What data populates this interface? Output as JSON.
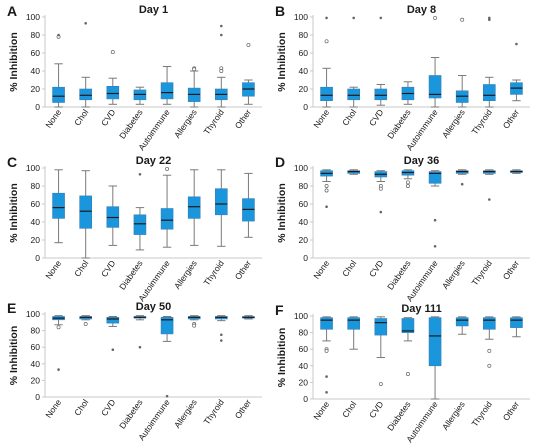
{
  "colors": {
    "box_fill": "#1a96dc",
    "box_stroke": "#3a7db5",
    "whisker": "#7a7a7a",
    "median": "#1a1a1a",
    "outlier": "#666666",
    "axis": "#c8c8c8",
    "text": "#1a1a1a"
  },
  "chart_data": [
    {
      "type": "box",
      "panel_letter": "A",
      "title": "Day 1",
      "ylabel": "% Inhibition",
      "ylim": [
        0,
        100
      ],
      "yticks": [
        0,
        20,
        40,
        60,
        80,
        100
      ],
      "categories": [
        "None",
        "Chol",
        "CVD",
        "Diabetes",
        "Autoimmune",
        "Allergies",
        "Thyroid",
        "Other"
      ],
      "boxes": [
        {
          "min": 0,
          "q1": 5,
          "median": 12,
          "q3": 22,
          "max": 48,
          "outliers": [
            78
          ],
          "extremes": [
            80
          ]
        },
        {
          "min": 0,
          "q1": 8,
          "median": 13,
          "q3": 20,
          "max": 33,
          "outliers": [],
          "extremes": [
            93
          ]
        },
        {
          "min": 3,
          "q1": 9,
          "median": 15,
          "q3": 23,
          "max": 32,
          "outliers": [
            61
          ],
          "extremes": []
        },
        {
          "min": 3,
          "q1": 8,
          "median": 14,
          "q3": 19,
          "max": 22,
          "outliers": [],
          "extremes": []
        },
        {
          "min": 3,
          "q1": 9,
          "median": 16,
          "q3": 27,
          "max": 45,
          "outliers": [],
          "extremes": []
        },
        {
          "min": 0,
          "q1": 6,
          "median": 14,
          "q3": 21,
          "max": 40,
          "outliers": [
            43,
            42
          ],
          "extremes": []
        },
        {
          "min": 0,
          "q1": 8,
          "median": 14,
          "q3": 20,
          "max": 33,
          "outliers": [
            43,
            40
          ],
          "extremes": [
            90,
            80
          ]
        },
        {
          "min": 3,
          "q1": 12,
          "median": 20,
          "q3": 27,
          "max": 30,
          "outliers": [
            69
          ],
          "extremes": []
        }
      ]
    },
    {
      "type": "box",
      "panel_letter": "B",
      "title": "Day 8",
      "ylabel": "% Inhibition",
      "ylim": [
        0,
        100
      ],
      "yticks": [
        0,
        20,
        40,
        60,
        80,
        100
      ],
      "categories": [
        "None",
        "Chol",
        "CVD",
        "Diabetes",
        "Autoimmune",
        "Allergies",
        "Thyroid",
        "Other"
      ],
      "boxes": [
        {
          "min": 0,
          "q1": 7,
          "median": 13,
          "q3": 22,
          "max": 43,
          "outliers": [
            73
          ],
          "extremes": [
            99
          ]
        },
        {
          "min": 0,
          "q1": 8,
          "median": 13,
          "q3": 20,
          "max": 22,
          "outliers": [],
          "extremes": [
            99
          ]
        },
        {
          "min": 2,
          "q1": 8,
          "median": 13,
          "q3": 20,
          "max": 25,
          "outliers": [],
          "extremes": [
            99
          ]
        },
        {
          "min": 3,
          "q1": 8,
          "median": 15,
          "q3": 22,
          "max": 28,
          "outliers": [],
          "extremes": []
        },
        {
          "min": 0,
          "q1": 10,
          "median": 14,
          "q3": 35,
          "max": 55,
          "outliers": [
            99
          ],
          "extremes": []
        },
        {
          "min": 0,
          "q1": 5,
          "median": 12,
          "q3": 18,
          "max": 35,
          "outliers": [
            97
          ],
          "extremes": []
        },
        {
          "min": 0,
          "q1": 7,
          "median": 13,
          "q3": 25,
          "max": 33,
          "outliers": [],
          "extremes": [
            99,
            97
          ]
        },
        {
          "min": 7,
          "q1": 14,
          "median": 21,
          "q3": 27,
          "max": 30,
          "outliers": [],
          "extremes": [
            70
          ]
        }
      ]
    },
    {
      "type": "box",
      "panel_letter": "C",
      "title": "Day 22",
      "ylabel": "% Inhibition",
      "ylim": [
        0,
        100
      ],
      "yticks": [
        0,
        20,
        40,
        60,
        80,
        100
      ],
      "categories": [
        "None",
        "Chol",
        "CVD",
        "Diabetes",
        "Autoimmune",
        "Allergies",
        "Thyroid",
        "Other"
      ],
      "boxes": [
        {
          "min": 17,
          "q1": 44,
          "median": 56,
          "q3": 72,
          "max": 98,
          "outliers": [],
          "extremes": []
        },
        {
          "min": 0,
          "q1": 33,
          "median": 52,
          "q3": 69,
          "max": 97,
          "outliers": [],
          "extremes": []
        },
        {
          "min": 14,
          "q1": 34,
          "median": 45,
          "q3": 57,
          "max": 80,
          "outliers": [],
          "extremes": []
        },
        {
          "min": 9,
          "q1": 26,
          "median": 38,
          "q3": 48,
          "max": 56,
          "outliers": [],
          "extremes": [
            93
          ]
        },
        {
          "min": 12,
          "q1": 32,
          "median": 42,
          "q3": 55,
          "max": 92,
          "outliers": [
            99
          ],
          "extremes": []
        },
        {
          "min": 14,
          "q1": 44,
          "median": 57,
          "q3": 68,
          "max": 98,
          "outliers": [],
          "extremes": []
        },
        {
          "min": 13,
          "q1": 48,
          "median": 60,
          "q3": 77,
          "max": 98,
          "outliers": [],
          "extremes": []
        },
        {
          "min": 23,
          "q1": 41,
          "median": 54,
          "q3": 66,
          "max": 94,
          "outliers": [],
          "extremes": []
        }
      ]
    },
    {
      "type": "box",
      "panel_letter": "D",
      "title": "Day 36",
      "ylabel": "% Inhibition",
      "ylim": [
        0,
        100
      ],
      "yticks": [
        0,
        20,
        40,
        60,
        80,
        100
      ],
      "categories": [
        "None",
        "Chol",
        "CVD",
        "Diabetes",
        "Autoimmune",
        "Allergies",
        "Thyroid",
        "Other"
      ],
      "boxes": [
        {
          "min": 85,
          "q1": 91,
          "median": 94,
          "q3": 97,
          "max": 98,
          "outliers": [
            80,
            75
          ],
          "extremes": [
            57
          ]
        },
        {
          "min": 93,
          "q1": 94,
          "median": 96,
          "q3": 97,
          "max": 98,
          "outliers": [],
          "extremes": []
        },
        {
          "min": 85,
          "q1": 90,
          "median": 93,
          "q3": 96,
          "max": 97,
          "outliers": [
            80,
            77
          ],
          "extremes": [
            51
          ]
        },
        {
          "min": 88,
          "q1": 92,
          "median": 95,
          "q3": 97,
          "max": 98,
          "outliers": [
            84,
            80
          ],
          "extremes": []
        },
        {
          "min": 80,
          "q1": 83,
          "median": 94,
          "q3": 96,
          "max": 97,
          "outliers": [],
          "extremes": [
            42,
            13
          ]
        },
        {
          "min": 93,
          "q1": 94,
          "median": 96,
          "q3": 97,
          "max": 98,
          "outliers": [],
          "extremes": [
            82
          ]
        },
        {
          "min": 93,
          "q1": 94,
          "median": 96,
          "q3": 97,
          "max": 98,
          "outliers": [],
          "extremes": [
            65
          ]
        },
        {
          "min": 94,
          "q1": 95,
          "median": 96,
          "q3": 97,
          "max": 98,
          "outliers": [],
          "extremes": []
        }
      ]
    },
    {
      "type": "box",
      "panel_letter": "E",
      "title": "Day 50",
      "ylabel": "% Inhibition",
      "ylim": [
        0,
        100
      ],
      "yticks": [
        0,
        20,
        40,
        60,
        80,
        100
      ],
      "categories": [
        "None",
        "Chol",
        "CVD",
        "Diabetes",
        "Autoimmune",
        "Allergies",
        "Thyroid",
        "Other"
      ],
      "boxes": [
        {
          "min": 87,
          "q1": 93,
          "median": 95,
          "q3": 97,
          "max": 98,
          "outliers": [
            84
          ],
          "extremes": [
            33
          ]
        },
        {
          "min": 93,
          "q1": 94,
          "median": 96,
          "q3": 97,
          "max": 98,
          "outliers": [
            88
          ],
          "extremes": []
        },
        {
          "min": 85,
          "q1": 89,
          "median": 94,
          "q3": 96,
          "max": 97,
          "outliers": [],
          "extremes": [
            57
          ]
        },
        {
          "min": 93,
          "q1": 95,
          "median": 96,
          "q3": 97,
          "max": 98,
          "outliers": [],
          "extremes": [
            60
          ]
        },
        {
          "min": 67,
          "q1": 76,
          "median": 93,
          "q3": 96,
          "max": 97,
          "outliers": [],
          "extremes": [
            1
          ]
        },
        {
          "min": 93,
          "q1": 94,
          "median": 96,
          "q3": 97,
          "max": 98,
          "outliers": [
            88,
            86
          ],
          "extremes": []
        },
        {
          "min": 92,
          "q1": 94,
          "median": 96,
          "q3": 97,
          "max": 98,
          "outliers": [],
          "extremes": [
            75,
            68
          ]
        },
        {
          "min": 94,
          "q1": 95,
          "median": 96,
          "q3": 97,
          "max": 98,
          "outliers": [],
          "extremes": []
        }
      ]
    },
    {
      "type": "box",
      "panel_letter": "F",
      "title": "Day 111",
      "ylabel": "% Inhibition",
      "ylim": [
        0,
        100
      ],
      "yticks": [
        0,
        20,
        40,
        60,
        80,
        100
      ],
      "categories": [
        "None",
        "Chol",
        "CVD",
        "Diabetes",
        "Autoimmune",
        "Allergies",
        "Thyroid",
        "Other"
      ],
      "boxes": [
        {
          "min": 70,
          "q1": 84,
          "median": 95,
          "q3": 98,
          "max": 99,
          "outliers": [
            60,
            58
          ],
          "extremes": [
            27,
            8
          ]
        },
        {
          "min": 60,
          "q1": 84,
          "median": 95,
          "q3": 98,
          "max": 99,
          "outliers": [],
          "extremes": []
        },
        {
          "min": 50,
          "q1": 77,
          "median": 92,
          "q3": 97,
          "max": 99,
          "outliers": [
            18
          ],
          "extremes": []
        },
        {
          "min": 70,
          "q1": 80,
          "median": 82,
          "q3": 97,
          "max": 98,
          "outliers": [
            30
          ],
          "extremes": []
        },
        {
          "min": 0,
          "q1": 40,
          "median": 76,
          "q3": 98,
          "max": 99,
          "outliers": [],
          "extremes": []
        },
        {
          "min": 78,
          "q1": 88,
          "median": 95,
          "q3": 98,
          "max": 99,
          "outliers": [],
          "extremes": []
        },
        {
          "min": 72,
          "q1": 84,
          "median": 95,
          "q3": 98,
          "max": 99,
          "outliers": [
            58,
            40
          ],
          "extremes": []
        },
        {
          "min": 75,
          "q1": 86,
          "median": 95,
          "q3": 98,
          "max": 99,
          "outliers": [],
          "extremes": []
        }
      ]
    }
  ]
}
